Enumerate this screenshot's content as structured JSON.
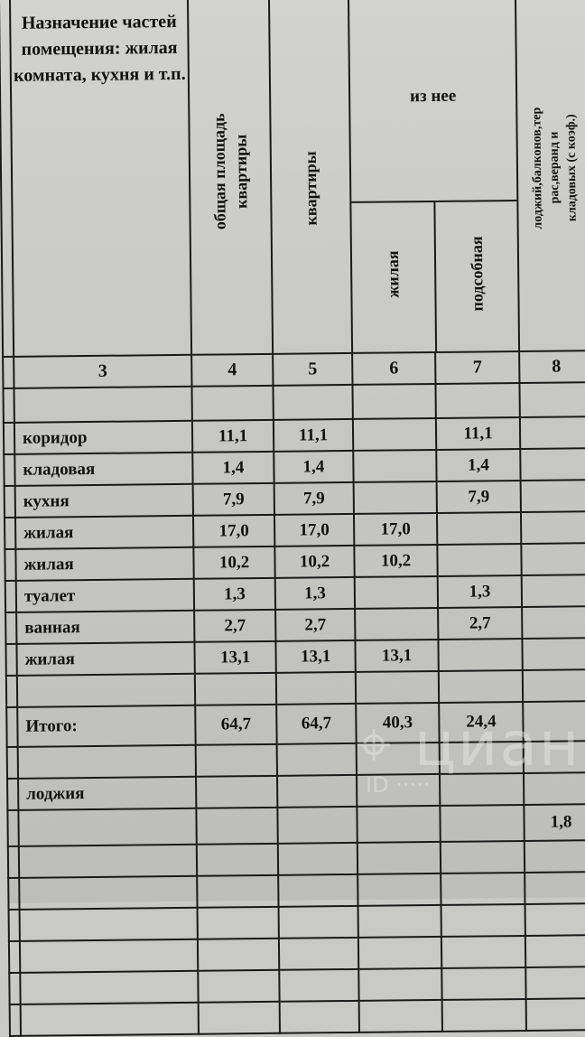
{
  "header": {
    "col3": "Назначение частей помещения: жилая комната, кухня и т.п.",
    "col4": [
      "общая площадь",
      "квартиры"
    ],
    "col5": "квартиры",
    "group_label": "из нее",
    "col6": "жилая",
    "col7": "подсобная",
    "col8": [
      "лоджий,балконов,тер",
      "рас,веранд и",
      "кладовых (с коэф.)"
    ],
    "numbers": [
      "3",
      "4",
      "5",
      "6",
      "7",
      "8"
    ]
  },
  "rows": [
    {
      "name": "коридор",
      "c4": "11,1",
      "c5": "11,1",
      "c6": "",
      "c7": "11,1",
      "c8": ""
    },
    {
      "name": "кладовая",
      "c4": "1,4",
      "c5": "1,4",
      "c6": "",
      "c7": "1,4",
      "c8": ""
    },
    {
      "name": "кухня",
      "c4": "7,9",
      "c5": "7,9",
      "c6": "",
      "c7": "7,9",
      "c8": ""
    },
    {
      "name": "жилая",
      "c4": "17,0",
      "c5": "17,0",
      "c6": "17,0",
      "c7": "",
      "c8": ""
    },
    {
      "name": "жилая",
      "c4": "10,2",
      "c5": "10,2",
      "c6": "10,2",
      "c7": "",
      "c8": ""
    },
    {
      "name": "туалет",
      "c4": "1,3",
      "c5": "1,3",
      "c6": "",
      "c7": "1,3",
      "c8": ""
    },
    {
      "name": "ванная",
      "c4": "2,7",
      "c5": "2,7",
      "c6": "",
      "c7": "2,7",
      "c8": ""
    },
    {
      "name": "жилая",
      "c4": "13,1",
      "c5": "13,1",
      "c6": "13,1",
      "c7": "",
      "c8": ""
    }
  ],
  "total": {
    "label": "Итого:",
    "c4": "64,7",
    "c5": "64,7",
    "c6": "40,3",
    "c7": "24,4"
  },
  "loggia": {
    "label": "лоджия",
    "c8": "1,8"
  },
  "watermark": {
    "logo": "циан",
    "id": "ID 307026648"
  }
}
